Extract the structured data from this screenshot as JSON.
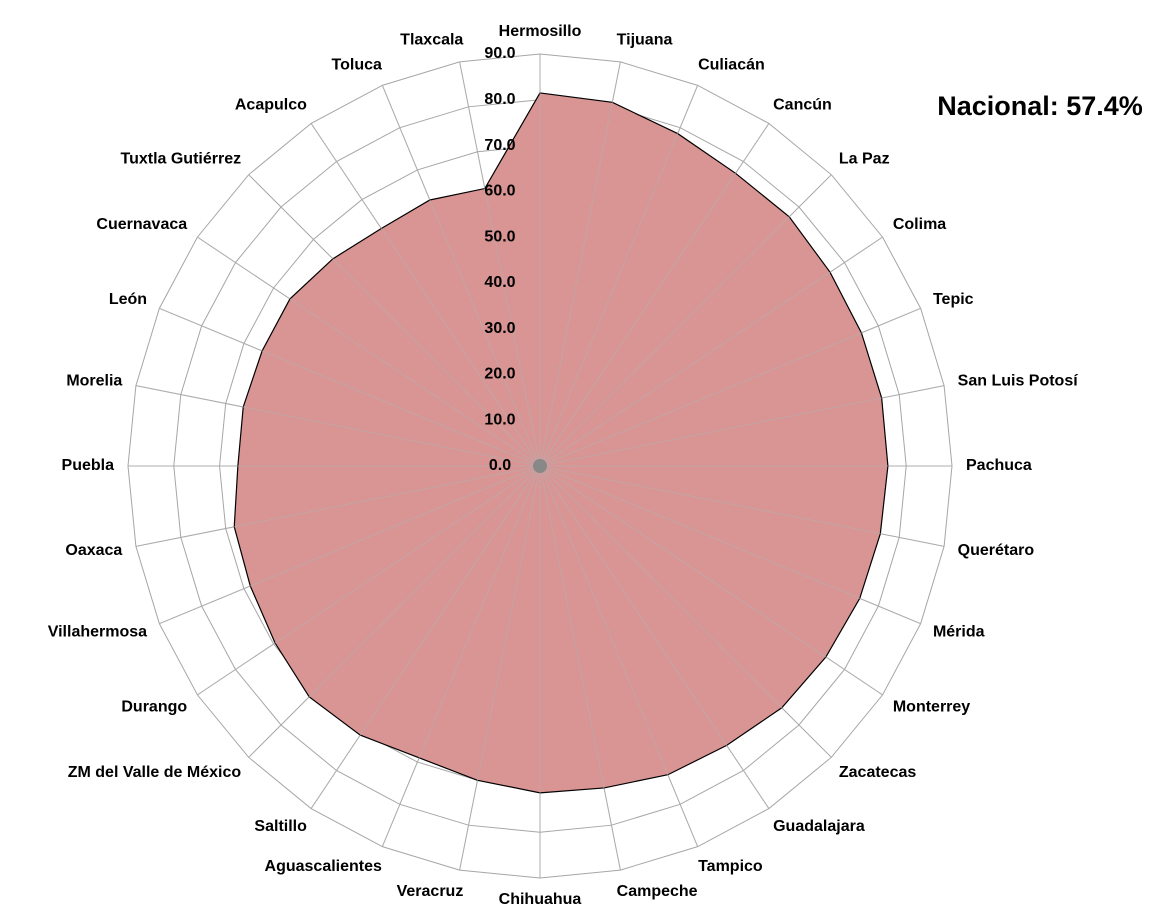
{
  "chart_data": {
    "type": "radar",
    "annotation": "Nacional: 57.4%",
    "categories": [
      "Hermosillo",
      "Tijuana",
      "Culiacán",
      "Cancún",
      "La Paz",
      "Colima",
      "Tepic",
      "San Luis Potosí",
      "Pachuca",
      "Querétaro",
      "Mérida",
      "Monterrey",
      "Zacatecas",
      "Guadalajara",
      "Tampico",
      "Campeche",
      "Chihuahua",
      "Veracruz",
      "Aguascalientes",
      "Saltillo",
      "ZM del Valle de México",
      "Durango",
      "Villahermosa",
      "Oaxaca",
      "Puebla",
      "Morelia",
      "León",
      "Cuernavaca",
      "Tuxtla Gutiérrez",
      "Acapulco",
      "Toluca",
      "Tlaxcala"
    ],
    "values": [
      81.5,
      81.0,
      78.6,
      76.9,
      77.0,
      76.2,
      76.0,
      76.1,
      76.0,
      75.8,
      75.6,
      75.1,
      74.7,
      73.4,
      73.0,
      71.7,
      71.4,
      70.0,
      69.0,
      70.7,
      71.3,
      69.6,
      68.5,
      68.1,
      66.0,
      66.1,
      65.7,
      65.7,
      64.0,
      62.4,
      62.9,
      61.8
    ],
    "color": "#d99594",
    "ylim": [
      0,
      90
    ],
    "yticks": [
      {
        "value": 0,
        "label": "0.0"
      },
      {
        "value": 10,
        "label": "10.0"
      },
      {
        "value": 20,
        "label": "20.0"
      },
      {
        "value": 30,
        "label": "30.0"
      },
      {
        "value": 40,
        "label": "40.0"
      },
      {
        "value": 50,
        "label": "50.0"
      },
      {
        "value": 60,
        "label": "60.0"
      },
      {
        "value": 70,
        "label": "70.0"
      },
      {
        "value": 80,
        "label": "80.0"
      },
      {
        "value": 90,
        "label": "90.0"
      }
    ],
    "grid": true
  }
}
